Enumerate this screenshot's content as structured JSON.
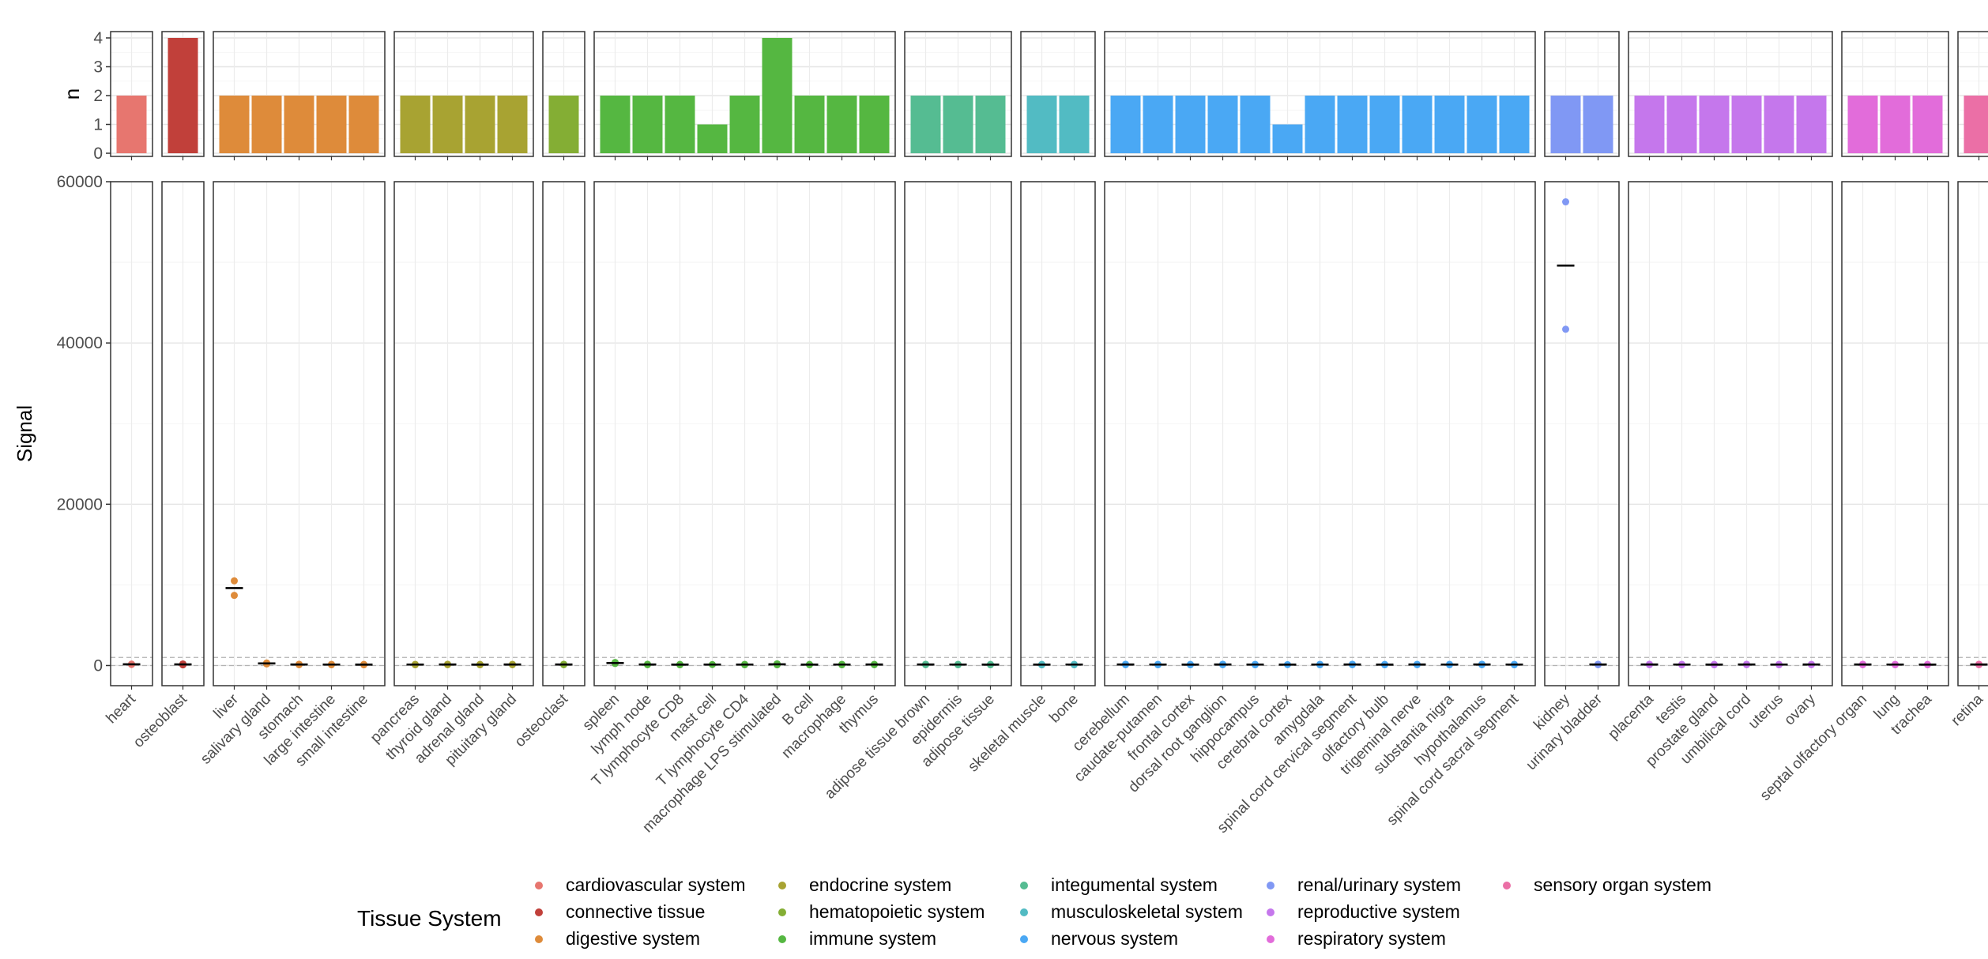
{
  "chart_data": {
    "type": "scatter",
    "top_panel": {
      "ylabel": "n",
      "ylim": [
        0,
        4
      ],
      "yticks": [
        "0",
        "1",
        "2",
        "3",
        "4"
      ]
    },
    "main_panel": {
      "ylabel": "Signal",
      "ylim": [
        -2500,
        60000
      ],
      "yticks": [
        "0",
        "20000",
        "40000",
        "60000"
      ],
      "threshold_lines": [
        0,
        1000
      ]
    },
    "grid": true,
    "legend": {
      "title": "Tissue System",
      "placement": "bottom",
      "entries": [
        {
          "label": "cardiovascular system",
          "color": "#E7766F"
        },
        {
          "label": "connective tissue",
          "color": "#C1403A"
        },
        {
          "label": "digestive system",
          "color": "#DE8B3A"
        },
        {
          "label": "endocrine system",
          "color": "#A8A332"
        },
        {
          "label": "hematopoietic system",
          "color": "#84AE34"
        },
        {
          "label": "immune system",
          "color": "#55B741"
        },
        {
          "label": "integumental system",
          "color": "#55BC92"
        },
        {
          "label": "musculoskeletal system",
          "color": "#52BBC3"
        },
        {
          "label": "nervous system",
          "color": "#4AA8F4"
        },
        {
          "label": "renal/urinary system",
          "color": "#8098F4"
        },
        {
          "label": "reproductive system",
          "color": "#C577EC"
        },
        {
          "label": "respiratory system",
          "color": "#E26CDA"
        },
        {
          "label": "sensory organ system",
          "color": "#EB6FA6"
        }
      ]
    },
    "facets": [
      {
        "system": "cardiovascular system",
        "color": "#E7766F",
        "tissues": [
          {
            "label": "heart",
            "n": 2,
            "points": [
              120,
              180
            ],
            "median": 150
          }
        ]
      },
      {
        "system": "connective tissue",
        "color": "#C1403A",
        "tissues": [
          {
            "label": "osteoblast",
            "n": 4,
            "points": [
              80,
              120,
              160,
              200
            ],
            "median": 140
          }
        ]
      },
      {
        "system": "digestive system",
        "color": "#DE8B3A",
        "tissues": [
          {
            "label": "liver",
            "n": 2,
            "points": [
              10500,
              8700
            ],
            "median": 9600
          },
          {
            "label": "salivary gland",
            "n": 2,
            "points": [
              200,
              320
            ],
            "median": 260
          },
          {
            "label": "stomach",
            "n": 2,
            "points": [
              100,
              160
            ],
            "median": 130
          },
          {
            "label": "large intestine",
            "n": 2,
            "points": [
              90,
              150
            ],
            "median": 120
          },
          {
            "label": "small intestine",
            "n": 2,
            "points": [
              90,
              140
            ],
            "median": 115
          }
        ]
      },
      {
        "system": "endocrine system",
        "color": "#A8A332",
        "tissues": [
          {
            "label": "pancreas",
            "n": 2,
            "points": [
              90,
              150
            ],
            "median": 120
          },
          {
            "label": "thyroid gland",
            "n": 2,
            "points": [
              100,
              160
            ],
            "median": 130
          },
          {
            "label": "adrenal gland",
            "n": 2,
            "points": [
              90,
              140
            ],
            "median": 115
          },
          {
            "label": "pituitary gland",
            "n": 2,
            "points": [
              100,
              150
            ],
            "median": 125
          }
        ]
      },
      {
        "system": "hematopoietic system",
        "color": "#84AE34",
        "tissues": [
          {
            "label": "osteoclast",
            "n": 2,
            "points": [
              100,
              160
            ],
            "median": 130
          }
        ]
      },
      {
        "system": "immune system",
        "color": "#55B741",
        "tissues": [
          {
            "label": "spleen",
            "n": 2,
            "points": [
              250,
              380
            ],
            "median": 315
          },
          {
            "label": "lymph node",
            "n": 2,
            "points": [
              100,
              160
            ],
            "median": 130
          },
          {
            "label": "T lymphocyte CD8",
            "n": 2,
            "points": [
              90,
              140
            ],
            "median": 115
          },
          {
            "label": "mast cell",
            "n": 1,
            "points": [
              120
            ],
            "median": 120
          },
          {
            "label": "T lymphocyte CD4",
            "n": 2,
            "points": [
              90,
              150
            ],
            "median": 120
          },
          {
            "label": "macrophage LPS stimulated",
            "n": 4,
            "points": [
              90,
              130,
              170,
              210
            ],
            "median": 150
          },
          {
            "label": "B cell",
            "n": 2,
            "points": [
              90,
              140
            ],
            "median": 115
          },
          {
            "label": "macrophage",
            "n": 2,
            "points": [
              90,
              150
            ],
            "median": 120
          },
          {
            "label": "thymus",
            "n": 2,
            "points": [
              100,
              150
            ],
            "median": 125
          }
        ]
      },
      {
        "system": "integumental system",
        "color": "#55BC92",
        "tissues": [
          {
            "label": "adipose tissue brown",
            "n": 2,
            "points": [
              100,
              160
            ],
            "median": 130
          },
          {
            "label": "epidermis",
            "n": 2,
            "points": [
              90,
              150
            ],
            "median": 120
          },
          {
            "label": "adipose tissue",
            "n": 2,
            "points": [
              90,
              140
            ],
            "median": 115
          }
        ]
      },
      {
        "system": "musculoskeletal system",
        "color": "#52BBC3",
        "tissues": [
          {
            "label": "skeletal muscle",
            "n": 2,
            "points": [
              80,
              140
            ],
            "median": 110
          },
          {
            "label": "bone",
            "n": 2,
            "points": [
              90,
              150
            ],
            "median": 120
          }
        ]
      },
      {
        "system": "nervous system",
        "color": "#4AA8F4",
        "tissues": [
          {
            "label": "cerebellum",
            "n": 2,
            "points": [
              100,
              160
            ],
            "median": 130
          },
          {
            "label": "caudate-putamen",
            "n": 2,
            "points": [
              90,
              150
            ],
            "median": 120
          },
          {
            "label": "frontal cortex",
            "n": 2,
            "points": [
              90,
              140
            ],
            "median": 115
          },
          {
            "label": "dorsal root ganglion",
            "n": 2,
            "points": [
              100,
              160
            ],
            "median": 130
          },
          {
            "label": "hippocampus",
            "n": 2,
            "points": [
              90,
              150
            ],
            "median": 120
          },
          {
            "label": "cerebral cortex",
            "n": 1,
            "points": [
              110
            ],
            "median": 110
          },
          {
            "label": "amygdala",
            "n": 2,
            "points": [
              90,
              150
            ],
            "median": 120
          },
          {
            "label": "spinal cord cervical segment",
            "n": 2,
            "points": [
              100,
              160
            ],
            "median": 130
          },
          {
            "label": "olfactory bulb",
            "n": 2,
            "points": [
              90,
              140
            ],
            "median": 115
          },
          {
            "label": "trigeminal nerve",
            "n": 2,
            "points": [
              100,
              150
            ],
            "median": 125
          },
          {
            "label": "substantia nigra",
            "n": 2,
            "points": [
              90,
              150
            ],
            "median": 120
          },
          {
            "label": "hypothalamus",
            "n": 2,
            "points": [
              100,
              160
            ],
            "median": 130
          },
          {
            "label": "spinal cord sacral segment",
            "n": 2,
            "points": [
              90,
              150
            ],
            "median": 120
          }
        ]
      },
      {
        "system": "renal/urinary system",
        "color": "#8098F4",
        "tissues": [
          {
            "label": "kidney",
            "n": 2,
            "points": [
              57500,
              41700
            ],
            "median": 49600
          },
          {
            "label": "urinary bladder",
            "n": 2,
            "points": [
              100,
              160
            ],
            "median": 130
          }
        ]
      },
      {
        "system": "reproductive system",
        "color": "#C577EC",
        "tissues": [
          {
            "label": "placenta",
            "n": 2,
            "points": [
              100,
              160
            ],
            "median": 130
          },
          {
            "label": "testis",
            "n": 2,
            "points": [
              90,
              150
            ],
            "median": 120
          },
          {
            "label": "prostate gland",
            "n": 2,
            "points": [
              90,
              140
            ],
            "median": 115
          },
          {
            "label": "umbilical cord",
            "n": 2,
            "points": [
              100,
              160
            ],
            "median": 130
          },
          {
            "label": "uterus",
            "n": 2,
            "points": [
              90,
              150
            ],
            "median": 120
          },
          {
            "label": "ovary",
            "n": 2,
            "points": [
              100,
              150
            ],
            "median": 125
          }
        ]
      },
      {
        "system": "respiratory system",
        "color": "#E26CDA",
        "tissues": [
          {
            "label": "septal olfactory organ",
            "n": 2,
            "points": [
              100,
              160
            ],
            "median": 130
          },
          {
            "label": "lung",
            "n": 2,
            "points": [
              90,
              150
            ],
            "median": 120
          },
          {
            "label": "trachea",
            "n": 2,
            "points": [
              90,
              140
            ],
            "median": 115
          }
        ]
      },
      {
        "system": "sensory organ system",
        "color": "#EB6FA6",
        "tissues": [
          {
            "label": "retina",
            "n": 2,
            "points": [
              100,
              160
            ],
            "median": 130
          }
        ]
      }
    ]
  }
}
